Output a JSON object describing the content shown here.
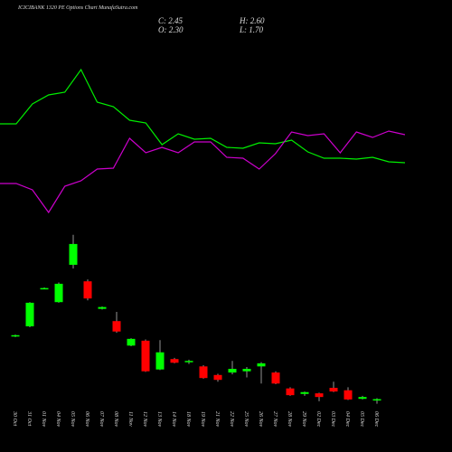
{
  "chart_data": {
    "type": "candlestick",
    "title": "ICICIBANK 1320 PE Options Chart MunafaSutra.com",
    "ohlc_header": [
      "C: 2.45",
      "H: 2.60",
      "O: 2.30",
      "L: 1.70"
    ],
    "categories": [
      "30 Oct",
      "31 Oct",
      "01 Nov",
      "04 Nov",
      "05 Nov",
      "06 Nov",
      "07 Nov",
      "08 Nov",
      "11 Nov",
      "12 Nov",
      "13 Nov",
      "14 Nov",
      "18 Nov",
      "19 Nov",
      "21 Nov",
      "22 Nov",
      "25 Nov",
      "26 Nov",
      "27 Nov",
      "28 Nov",
      "29 Nov",
      "02 Dec",
      "03 Dec",
      "04 Dec",
      "05 Dec",
      "06 Dec"
    ],
    "open": [
      12.7,
      14.35,
      20.5,
      18.3,
      24.4,
      21.7,
      17.2,
      15.2,
      11.2,
      12.0,
      7.3,
      9.0,
      8.5,
      7.8,
      6.4,
      6.8,
      7.0,
      7.8,
      6.8,
      4.2,
      3.3,
      3.4,
      4.3,
      3.9,
      2.5,
      2.3
    ],
    "high": [
      13.0,
      18.3,
      20.7,
      21.5,
      29.3,
      22.0,
      17.6,
      16.7,
      12.4,
      12.2,
      12.1,
      9.2,
      8.9,
      8.0,
      6.6,
      8.7,
      7.7,
      8.5,
      7.0,
      4.4,
      3.7,
      3.5,
      5.3,
      4.4,
      3.0,
      2.6
    ],
    "low": [
      12.6,
      14.2,
      20.4,
      18.2,
      23.8,
      18.6,
      17.1,
      13.3,
      11.1,
      6.9,
      7.2,
      8.3,
      8.2,
      5.8,
      5.3,
      6.5,
      6.0,
      5.0,
      4.9,
      3.0,
      3.0,
      2.1,
      3.6,
      2.3,
      2.4,
      1.7
    ],
    "close": [
      12.9,
      18.2,
      20.6,
      21.3,
      27.8,
      18.9,
      17.5,
      13.5,
      12.3,
      7.0,
      10.1,
      8.4,
      8.7,
      5.9,
      5.6,
      7.4,
      7.4,
      8.3,
      5.0,
      3.1,
      3.6,
      2.8,
      3.7,
      2.4,
      2.8,
      2.45
    ],
    "up_color": "#00ff00",
    "down_color": "#ff0000",
    "ylim": [
      1.2,
      30
    ],
    "lines": [
      {
        "color": "#00ee00",
        "values": [
          113,
          113,
          135,
          145,
          148,
          173,
          137,
          132,
          117,
          114,
          90,
          102,
          96,
          97,
          87,
          86,
          92,
          91,
          95,
          82,
          75,
          75,
          74,
          76,
          71,
          70
        ]
      },
      {
        "color": "#cc00cc",
        "values": [
          47,
          47,
          40,
          15,
          44,
          50,
          63,
          64,
          97,
          81,
          87,
          81,
          93,
          93,
          76,
          75,
          63,
          80,
          104,
          100,
          102,
          81,
          104,
          98,
          105,
          101
        ]
      }
    ],
    "lines_ylim": [
      0,
      200
    ]
  }
}
